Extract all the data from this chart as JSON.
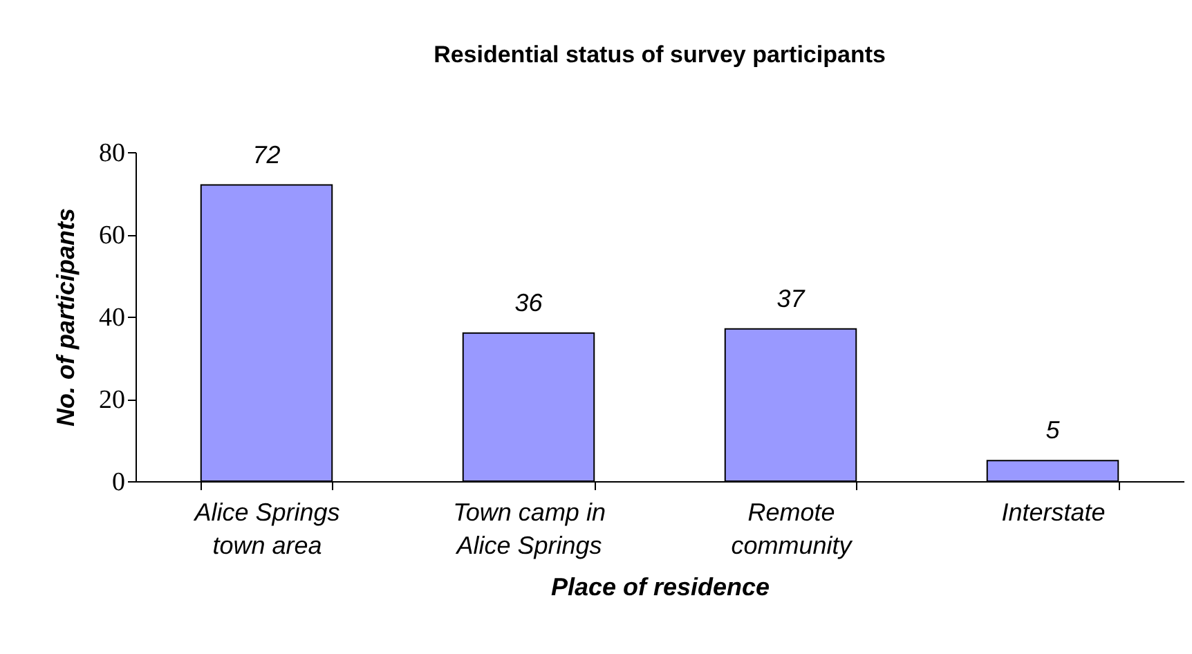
{
  "chart_data": {
    "type": "bar",
    "title": "Residential status of survey participants",
    "xlabel": "Place of residence",
    "ylabel": "No. of participants",
    "categories": [
      "Alice Springs\ntown area",
      "Town camp in\nAlice Springs",
      "Remote\ncommunity",
      "Interstate"
    ],
    "values": [
      72,
      36,
      37,
      5
    ],
    "color": "#9999ff",
    "ylim": [
      0,
      80
    ],
    "yticks": [
      0,
      20,
      40,
      60,
      80
    ],
    "data_labels": true
  }
}
